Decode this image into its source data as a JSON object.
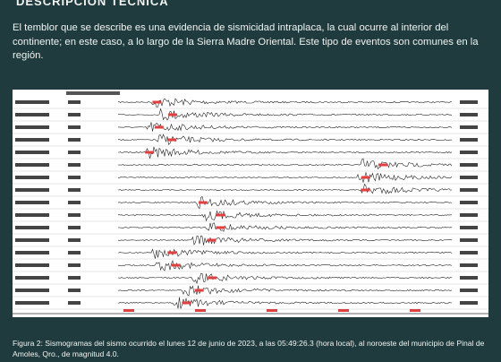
{
  "header": {
    "title": "DESCRIPCIÓN TÉCNICA"
  },
  "body": {
    "paragraph": "El temblor que se describe es una evidencia de sismicidad intraplaca, la cual ocurre al interior del continente; en este caso, a lo largo de la Sierra Madre Oriental. Este tipo de eventos son comunes en la región."
  },
  "figure": {
    "caption": "Figura 2: Sismogramas del sismo ocurrido el lunes 12 de junio de 2023, a las 05:49:26.3 (hora local), al noroeste del municipio de Pinal de Amoles, Qro., de magnitud 4.0."
  }
}
